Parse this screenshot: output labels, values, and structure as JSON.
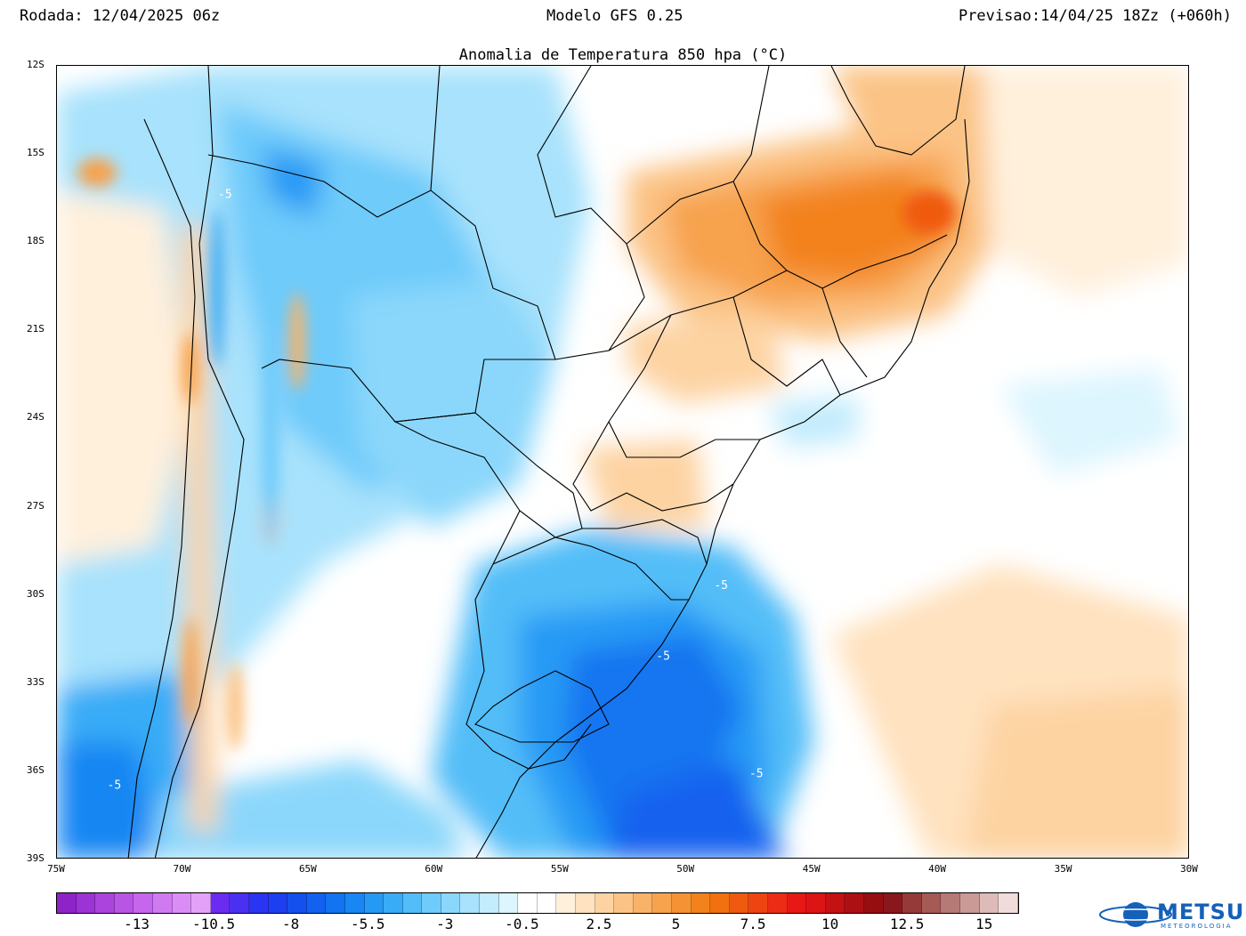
{
  "header": {
    "run": "Rodada: 12/04/2025 06z",
    "model": "Modelo GFS 0.25",
    "forecast": "Previsao:14/04/25 18Zz (+060h)"
  },
  "title": "Anomalia de Temperatura 850 hpa (°C)",
  "map": {
    "lat_labels": [
      "12S",
      "15S",
      "18S",
      "21S",
      "24S",
      "27S",
      "30S",
      "33S",
      "36S",
      "39S"
    ],
    "lon_labels": [
      "75W",
      "70W",
      "65W",
      "60W",
      "55W",
      "50W",
      "45W",
      "40W",
      "35W",
      "30W"
    ],
    "lat_range": [
      -39,
      -12
    ],
    "lon_range": [
      -75,
      -30
    ],
    "contour_labels": [
      {
        "text": "-5",
        "lon": -68.6,
        "lat": -16.5
      },
      {
        "text": "-5",
        "lon": -48.9,
        "lat": -29.8
      },
      {
        "text": "-5",
        "lon": -51.2,
        "lat": -32.2
      },
      {
        "text": "-5",
        "lon": -47.5,
        "lat": -36.2
      },
      {
        "text": "-5",
        "lon": -73.0,
        "lat": -36.6
      }
    ]
  },
  "colorbar": {
    "labels": [
      "-13",
      "-10.5",
      "-8",
      "-5.5",
      "-3",
      "-0.5",
      "2.5",
      "5",
      "7.5",
      "10",
      "12.5",
      "15"
    ],
    "colors": [
      "#8e24c8",
      "#9c33d4",
      "#ab44dd",
      "#b955e5",
      "#c566ec",
      "#d07af1",
      "#da8ef5",
      "#e3a2f8",
      "#6a2cf0",
      "#4a30f2",
      "#2a34f3",
      "#1d3ff0",
      "#1450ee",
      "#1262ef",
      "#1274f0",
      "#1886f3",
      "#259af5",
      "#38acf7",
      "#52bdf8",
      "#6ecbfa",
      "#8bd7fb",
      "#a8e2fc",
      "#c3ecfd",
      "#dcf5fe",
      "#ffffff",
      "#ffffff",
      "#fff0dc",
      "#ffe2bf",
      "#fdd3a2",
      "#fbc385",
      "#f9b369",
      "#f7a24d",
      "#f59233",
      "#f3821c",
      "#f17010",
      "#f05a10",
      "#ee4412",
      "#ec2c14",
      "#e81816",
      "#dc1416",
      "#c41214",
      "#ac1012",
      "#960e10",
      "#88181c",
      "#953a38",
      "#a55a56",
      "#b67a76",
      "#c99a96",
      "#dcbbb8",
      "#f0dcda"
    ]
  },
  "logo": {
    "name": "METSUL",
    "subtitle": "METEOROLOGIA"
  },
  "colors": {
    "cold": "#1262ef",
    "warm": "#f59233",
    "border": "#000000"
  }
}
